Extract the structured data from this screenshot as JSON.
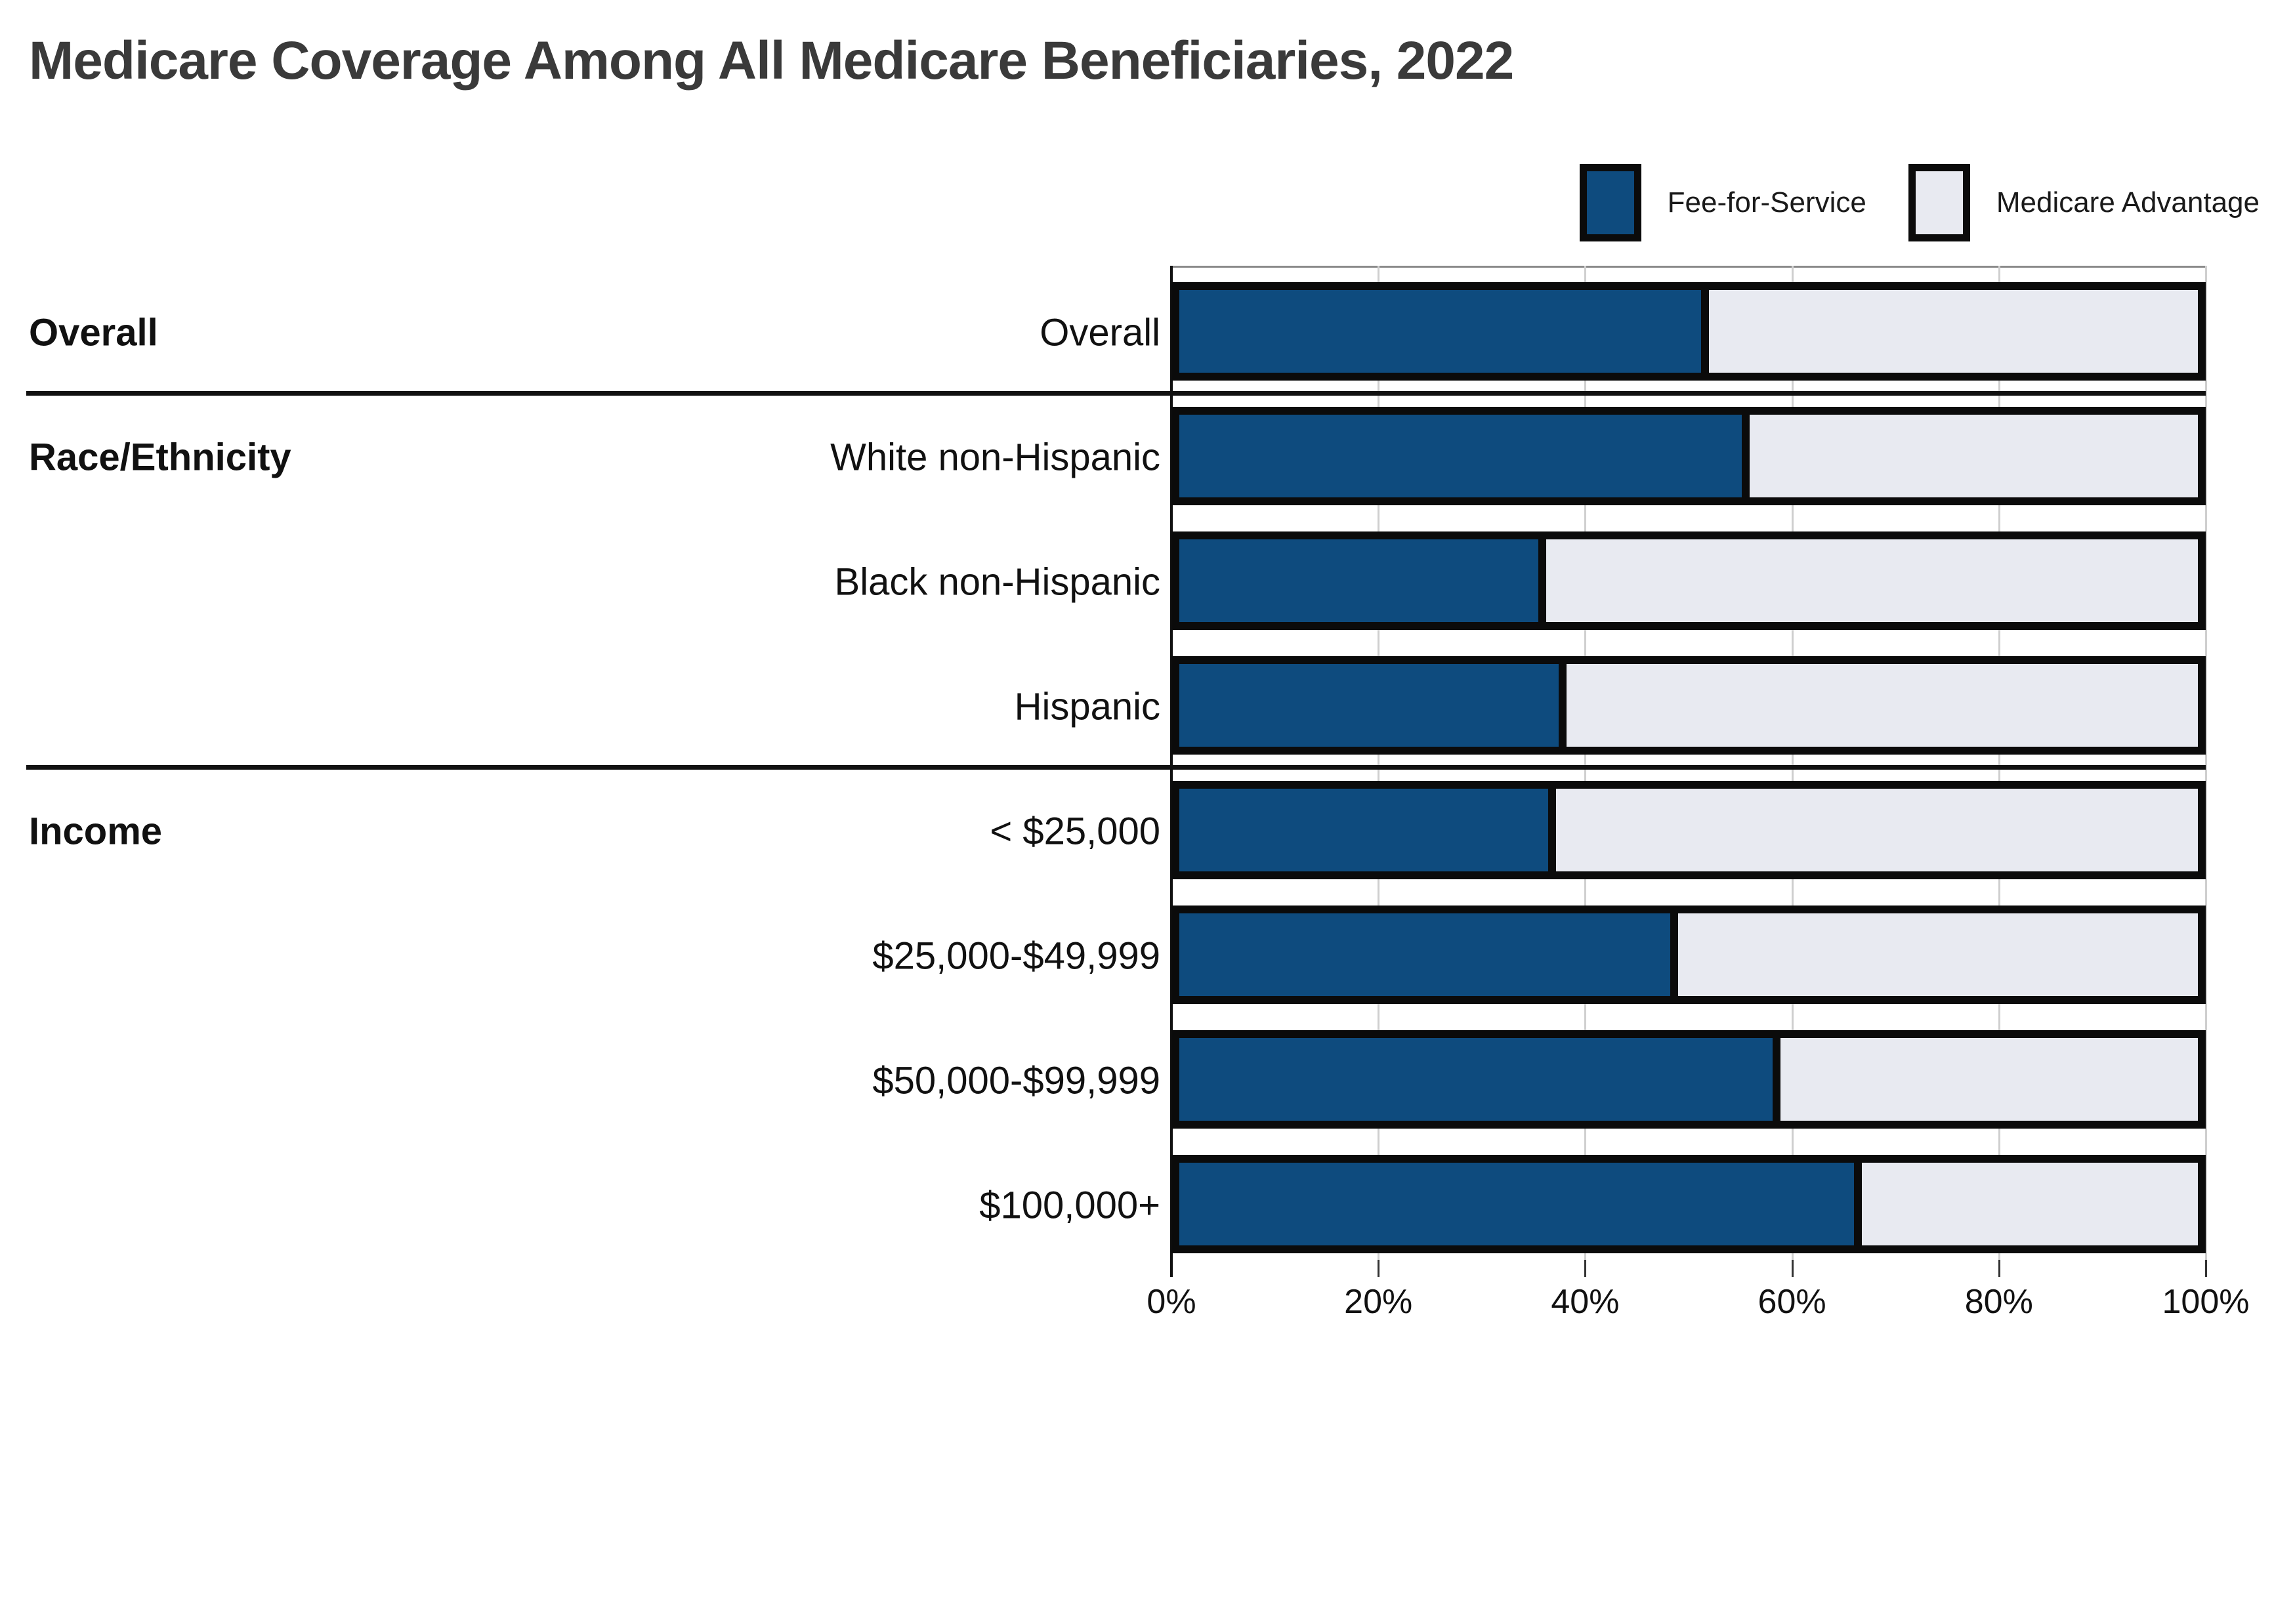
{
  "page": {
    "title": "Medicare Coverage Among All Medicare Beneficiaries, 2022"
  },
  "legend": {
    "items": [
      {
        "label": "Fee-for-Service",
        "color": "#0E4B7E"
      },
      {
        "label": "Medicare Advantage",
        "color": "#E8EAF1"
      }
    ]
  },
  "chart_data": {
    "type": "bar",
    "orientation": "horizontal",
    "stacked": true,
    "unit": "percent",
    "title": "Medicare Coverage Among All Medicare Beneficiaries, 2022",
    "xlabel": "",
    "ylabel": "",
    "xlim": [
      0,
      100
    ],
    "x_ticks": [
      "0%",
      "20%",
      "40%",
      "60%",
      "80%",
      "100%"
    ],
    "grid": true,
    "legend_position": "top-right",
    "groups": [
      {
        "name": "Overall",
        "rows": [
          "Overall"
        ]
      },
      {
        "name": "Race/Ethnicity",
        "rows": [
          "White non-Hispanic",
          "Black non-Hispanic",
          "Hispanic"
        ]
      },
      {
        "name": "Income",
        "rows": [
          "< $25,000",
          "$25,000-$49,999",
          "$50,000-$99,999",
          "$100,000+"
        ]
      }
    ],
    "categories": [
      "Overall",
      "White non-Hispanic",
      "Black non-Hispanic",
      "Hispanic",
      "< $25,000",
      "$25,000-$49,999",
      "$50,000-$99,999",
      "$100,000+"
    ],
    "series": [
      {
        "name": "Fee-for-Service",
        "color": "#0E4B7E",
        "values": [
          52,
          56,
          36,
          38,
          37,
          49,
          59,
          67
        ]
      },
      {
        "name": "Medicare Advantage",
        "color": "#E8EAF1",
        "values": [
          48,
          44,
          64,
          62,
          63,
          51,
          41,
          33
        ]
      }
    ]
  }
}
